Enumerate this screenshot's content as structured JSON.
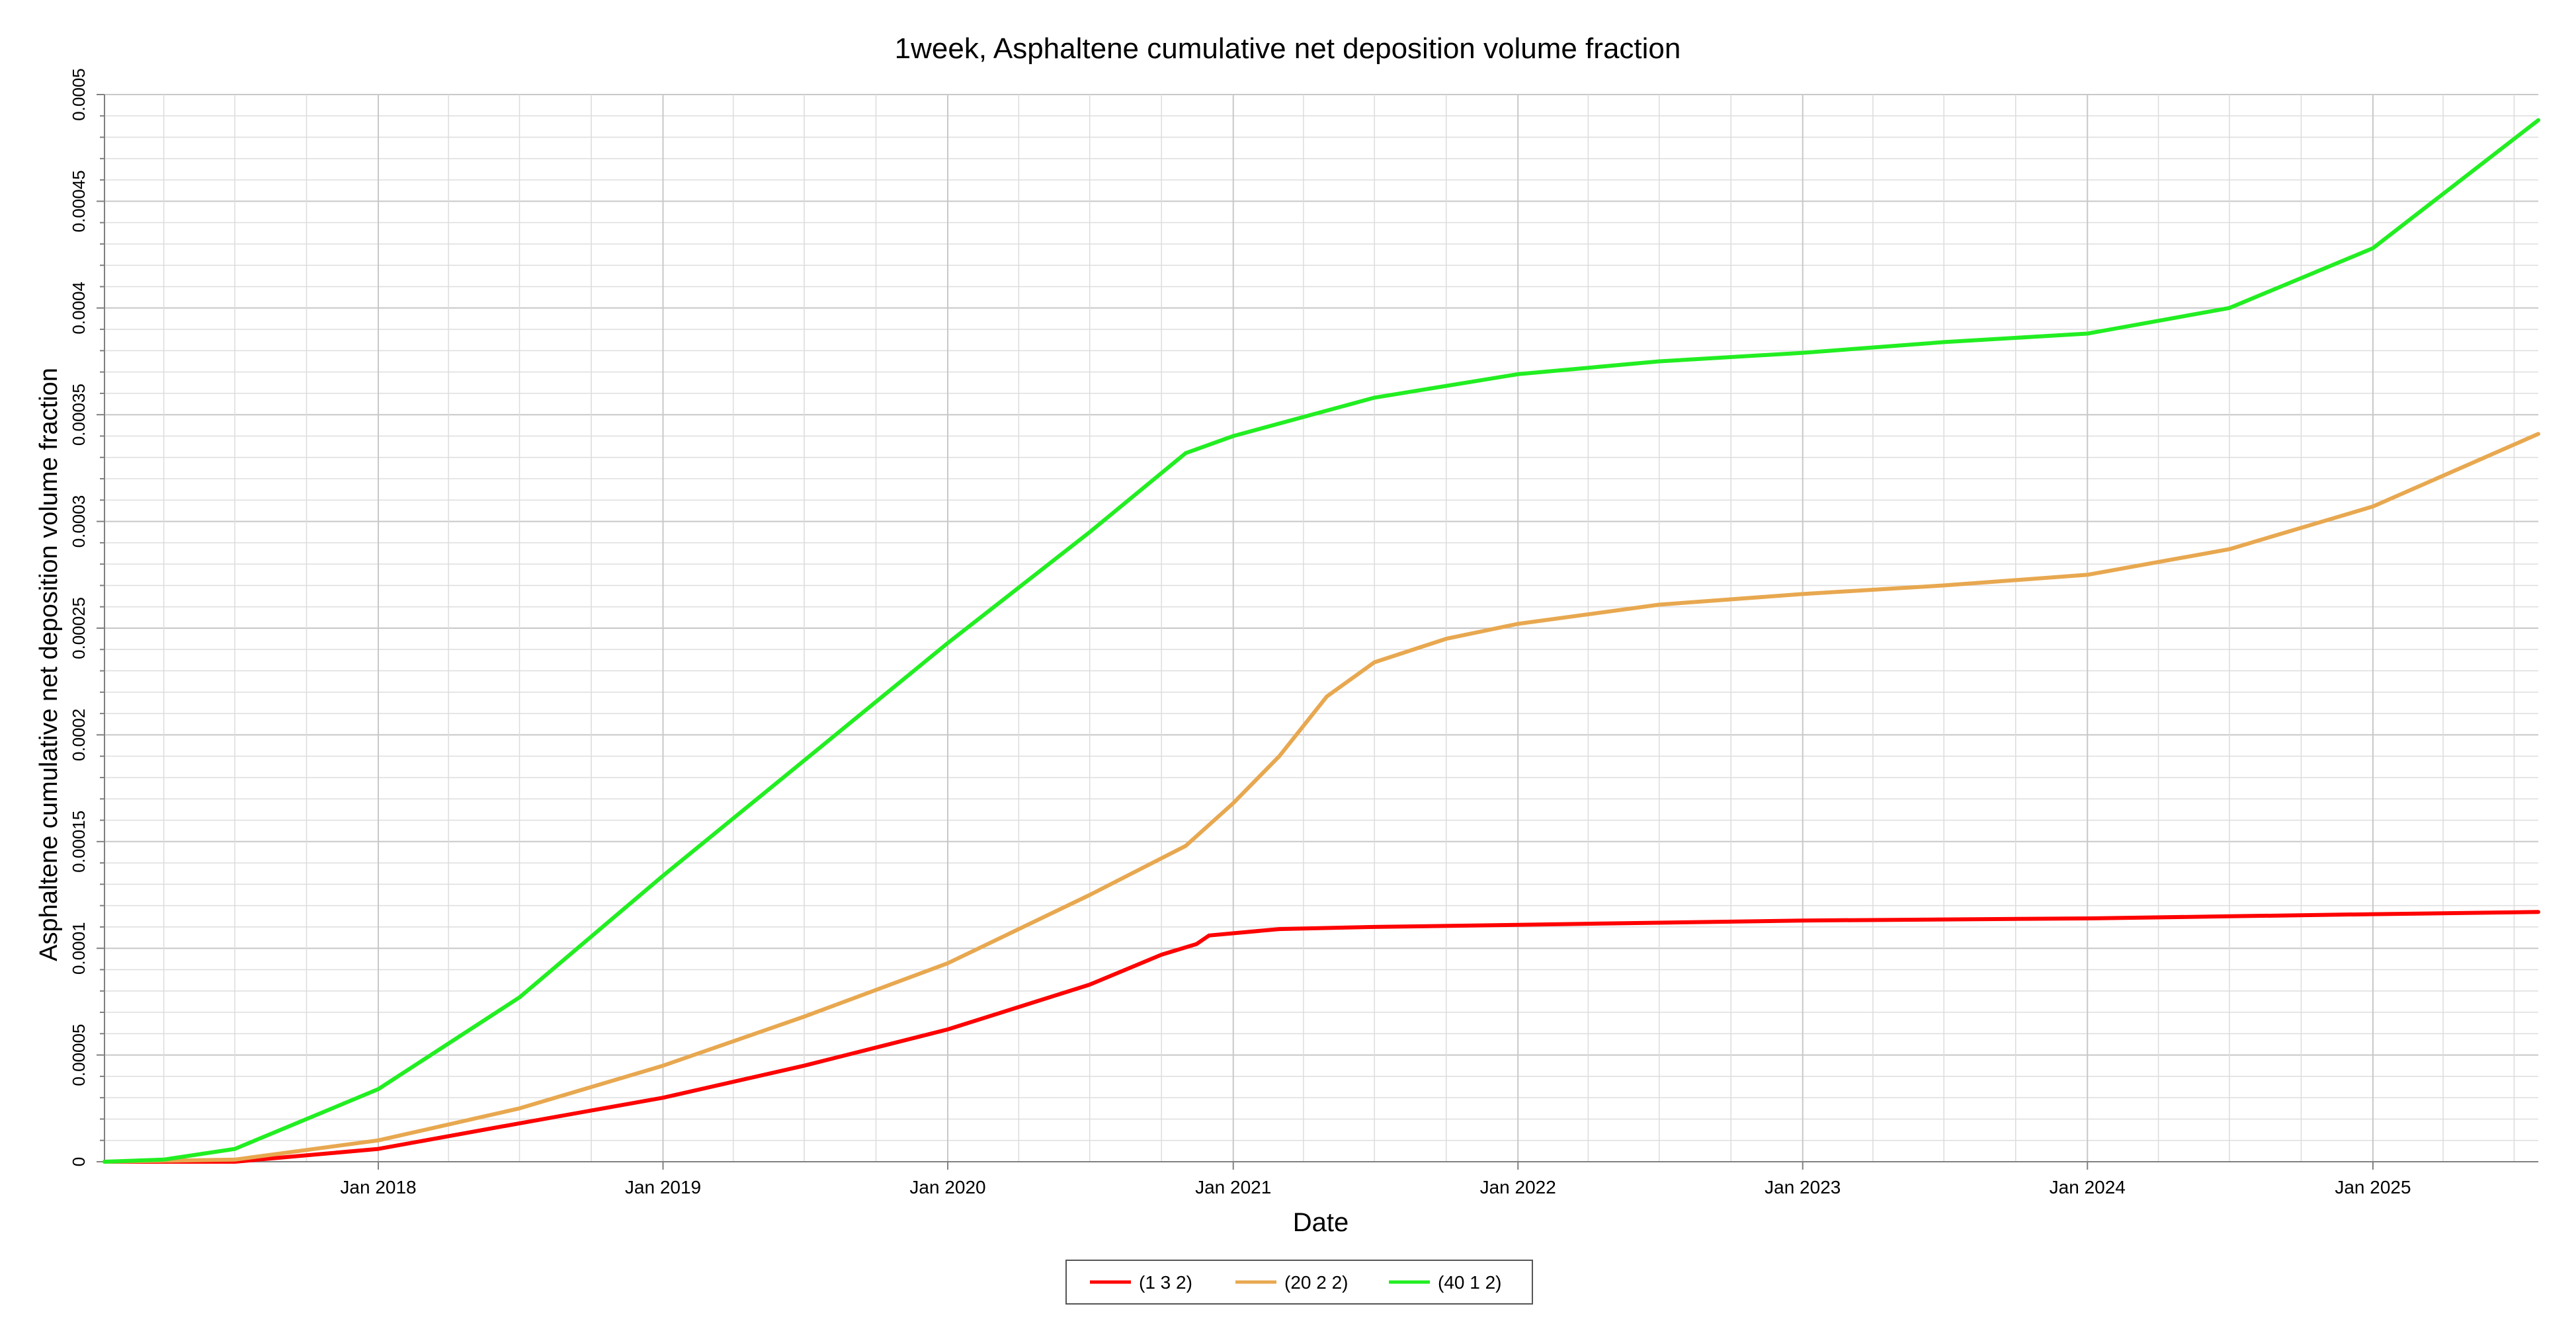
{
  "chart_data": {
    "type": "line",
    "title": "1week, Asphaltene cumulative net deposition volume fraction",
    "xlabel": "Date",
    "ylabel": "Asphaltene cumulative net deposition volume fraction",
    "xlim": [
      "2017-01-15",
      "2025-08-01"
    ],
    "ylim": [
      0,
      0.0005
    ],
    "x_ticks": [
      {
        "label": "Jan 2018",
        "date": "2018-01-01"
      },
      {
        "label": "Jan 2019",
        "date": "2019-01-01"
      },
      {
        "label": "Jan 2020",
        "date": "2020-01-01"
      },
      {
        "label": "Jan 2021",
        "date": "2021-01-01"
      },
      {
        "label": "Jan 2022",
        "date": "2022-01-01"
      },
      {
        "label": "Jan 2023",
        "date": "2023-01-01"
      },
      {
        "label": "Jan 2024",
        "date": "2024-01-01"
      },
      {
        "label": "Jan 2025",
        "date": "2025-01-01"
      }
    ],
    "y_ticks": [
      {
        "label": "0",
        "value": 0
      },
      {
        "label": "0.00005",
        "value": 5e-05
      },
      {
        "label": "0.0001",
        "value": 0.0001
      },
      {
        "label": "0.00015",
        "value": 0.00015
      },
      {
        "label": "0.0002",
        "value": 0.0002
      },
      {
        "label": "0.00025",
        "value": 0.00025
      },
      {
        "label": "0.0003",
        "value": 0.0003
      },
      {
        "label": "0.00035",
        "value": 0.00035
      },
      {
        "label": "0.0004",
        "value": 0.0004
      },
      {
        "label": "0.00045",
        "value": 0.00045
      },
      {
        "label": "0.0005",
        "value": 0.0005
      }
    ],
    "grid": true,
    "legend_position": "bottom-center",
    "series": [
      {
        "name": "(1 3 2)",
        "color": "#ff0000",
        "points": [
          [
            "2017-01-15",
            0
          ],
          [
            "2017-07-01",
            0
          ],
          [
            "2018-01-01",
            6e-06
          ],
          [
            "2018-07-01",
            1.8e-05
          ],
          [
            "2019-01-01",
            3e-05
          ],
          [
            "2019-07-01",
            4.5e-05
          ],
          [
            "2020-01-01",
            6.2e-05
          ],
          [
            "2020-07-01",
            8.3e-05
          ],
          [
            "2020-10-01",
            9.7e-05
          ],
          [
            "2020-11-15",
            0.000102
          ],
          [
            "2020-12-01",
            0.000106
          ],
          [
            "2021-03-01",
            0.000109
          ],
          [
            "2021-07-01",
            0.00011
          ],
          [
            "2022-01-01",
            0.000111
          ],
          [
            "2022-07-01",
            0.000112
          ],
          [
            "2023-01-01",
            0.000113
          ],
          [
            "2024-01-01",
            0.000114
          ],
          [
            "2024-07-01",
            0.000115
          ],
          [
            "2025-01-01",
            0.000116
          ],
          [
            "2025-08-01",
            0.000117
          ]
        ]
      },
      {
        "name": "(20 2 2)",
        "color": "#e8a850",
        "points": [
          [
            "2017-01-15",
            0
          ],
          [
            "2017-07-01",
            1e-06
          ],
          [
            "2018-01-01",
            1e-05
          ],
          [
            "2018-07-01",
            2.5e-05
          ],
          [
            "2019-01-01",
            4.5e-05
          ],
          [
            "2019-07-01",
            6.8e-05
          ],
          [
            "2020-01-01",
            9.3e-05
          ],
          [
            "2020-07-01",
            0.000125
          ],
          [
            "2020-11-01",
            0.000148
          ],
          [
            "2021-01-01",
            0.000168
          ],
          [
            "2021-03-01",
            0.00019
          ],
          [
            "2021-05-01",
            0.000218
          ],
          [
            "2021-07-01",
            0.000234
          ],
          [
            "2021-10-01",
            0.000245
          ],
          [
            "2022-01-01",
            0.000252
          ],
          [
            "2022-07-01",
            0.000261
          ],
          [
            "2023-01-01",
            0.000266
          ],
          [
            "2023-07-01",
            0.00027
          ],
          [
            "2024-01-01",
            0.000275
          ],
          [
            "2024-07-01",
            0.000287
          ],
          [
            "2025-01-01",
            0.000307
          ],
          [
            "2025-08-01",
            0.000341
          ]
        ]
      },
      {
        "name": "(40 1 2)",
        "color": "#22ee22",
        "points": [
          [
            "2017-01-15",
            0
          ],
          [
            "2017-04-01",
            1e-06
          ],
          [
            "2017-07-01",
            6e-06
          ],
          [
            "2018-01-01",
            3.4e-05
          ],
          [
            "2018-07-01",
            7.7e-05
          ],
          [
            "2019-01-01",
            0.000134
          ],
          [
            "2019-07-01",
            0.000188
          ],
          [
            "2020-01-01",
            0.000243
          ],
          [
            "2020-07-01",
            0.000295
          ],
          [
            "2020-11-01",
            0.000332
          ],
          [
            "2021-01-01",
            0.00034
          ],
          [
            "2021-07-01",
            0.000358
          ],
          [
            "2022-01-01",
            0.000369
          ],
          [
            "2022-07-01",
            0.000375
          ],
          [
            "2023-01-01",
            0.000379
          ],
          [
            "2023-07-01",
            0.000384
          ],
          [
            "2024-01-01",
            0.000388
          ],
          [
            "2024-07-01",
            0.0004
          ],
          [
            "2025-01-01",
            0.000428
          ],
          [
            "2025-08-01",
            0.000488
          ]
        ]
      }
    ]
  }
}
